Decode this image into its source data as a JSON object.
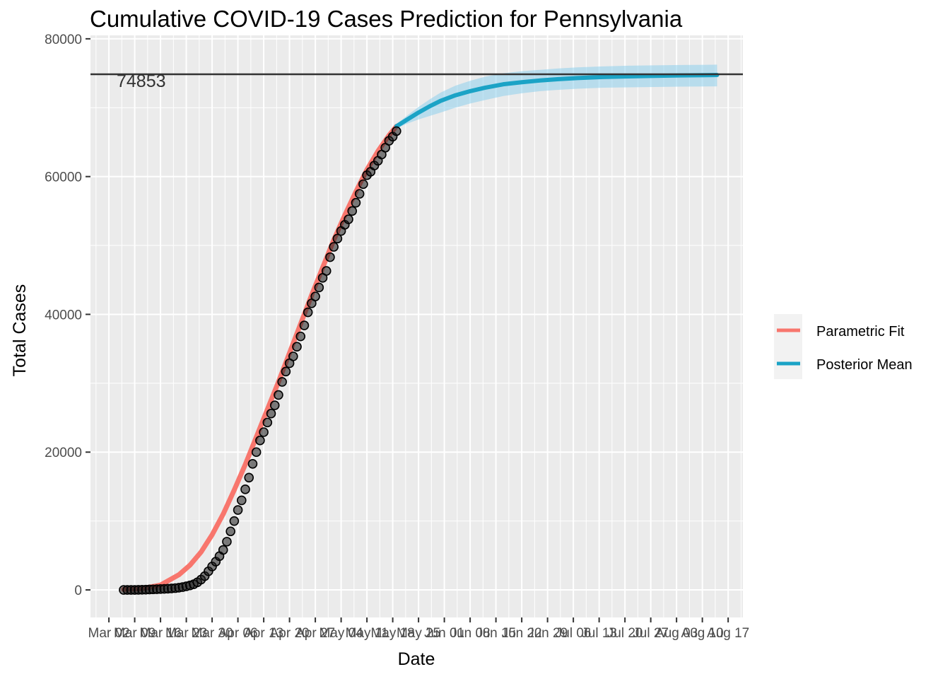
{
  "chart_data": {
    "type": "line",
    "title": "Cumulative COVID-19 Cases Prediction for Pennsylvania",
    "xlabel": "Date",
    "ylabel": "Total Cases",
    "x_range": [
      "2020-02-26",
      "2020-08-21"
    ],
    "ylim": [
      -4000,
      80500
    ],
    "y_ticks": [
      0,
      20000,
      40000,
      60000,
      80000
    ],
    "x_ticks": [
      {
        "date": "2020-03-02",
        "label": "Mar 02"
      },
      {
        "date": "2020-03-09",
        "label": "Mar 09"
      },
      {
        "date": "2020-03-16",
        "label": "Mar 16"
      },
      {
        "date": "2020-03-23",
        "label": "Mar 23"
      },
      {
        "date": "2020-03-30",
        "label": "Mar 30"
      },
      {
        "date": "2020-04-06",
        "label": "Apr 06"
      },
      {
        "date": "2020-04-13",
        "label": "Apr 13"
      },
      {
        "date": "2020-04-20",
        "label": "Apr 20"
      },
      {
        "date": "2020-04-27",
        "label": "Apr 27"
      },
      {
        "date": "2020-05-04",
        "label": "May 04"
      },
      {
        "date": "2020-05-11",
        "label": "May 11"
      },
      {
        "date": "2020-05-18",
        "label": "May 18"
      },
      {
        "date": "2020-05-25",
        "label": "May 25"
      },
      {
        "date": "2020-06-01",
        "label": "Jun 01"
      },
      {
        "date": "2020-06-08",
        "label": "Jun 08"
      },
      {
        "date": "2020-06-15",
        "label": "Jun 15"
      },
      {
        "date": "2020-06-22",
        "label": "Jun 22"
      },
      {
        "date": "2020-06-29",
        "label": "Jun 29"
      },
      {
        "date": "2020-07-06",
        "label": "Jul 06"
      },
      {
        "date": "2020-07-13",
        "label": "Jul 13"
      },
      {
        "date": "2020-07-20",
        "label": "Jul 20"
      },
      {
        "date": "2020-07-27",
        "label": "Jul 27"
      },
      {
        "date": "2020-08-03",
        "label": "Aug 03"
      },
      {
        "date": "2020-08-10",
        "label": "Aug 10"
      },
      {
        "date": "2020-08-17",
        "label": "Aug 17"
      }
    ],
    "hline": {
      "value": 74853,
      "label": "74853",
      "color": "#333333"
    },
    "observed": {
      "start_date": "2020-03-06",
      "values": [
        0,
        0,
        0,
        0,
        10,
        20,
        40,
        60,
        80,
        100,
        130,
        150,
        180,
        220,
        260,
        320,
        410,
        520,
        650,
        820,
        1100,
        1500,
        2000,
        2700,
        3400,
        4100,
        4900,
        5800,
        7000,
        8500,
        10000,
        11600,
        13000,
        14600,
        16300,
        18300,
        20000,
        21700,
        22900,
        24300,
        25600,
        26800,
        28300,
        30200,
        31700,
        32900,
        33900,
        35300,
        36800,
        38400,
        40300,
        41600,
        42600,
        43900,
        45300,
        46300,
        48300,
        49800,
        51000,
        52100,
        53000,
        53800,
        55000,
        56200,
        57500,
        58900,
        60200,
        60700,
        61600,
        62300,
        63200,
        64200,
        65200,
        65800,
        66600
      ]
    },
    "series": [
      {
        "name": "Parametric Fit",
        "color": "#F8766D",
        "x": [
          "2020-03-06",
          "2020-03-11",
          "2020-03-16",
          "2020-03-21",
          "2020-03-24",
          "2020-03-27",
          "2020-03-30",
          "2020-04-02",
          "2020-04-05",
          "2020-04-08",
          "2020-04-11",
          "2020-04-14",
          "2020-04-17",
          "2020-04-20",
          "2020-04-23",
          "2020-04-26",
          "2020-04-29",
          "2020-05-02",
          "2020-05-05",
          "2020-05-08",
          "2020-05-11",
          "2020-05-14",
          "2020-05-17",
          "2020-05-19"
        ],
        "values": [
          80,
          200,
          700,
          2200,
          3600,
          5500,
          8000,
          11000,
          14500,
          18200,
          22200,
          26200,
          30200,
          34400,
          38600,
          42800,
          46800,
          50800,
          54400,
          57800,
          61000,
          63700,
          66000,
          67300
        ]
      },
      {
        "name": "Posterior Mean",
        "color": "#00BFC4",
        "x": [
          "2020-05-19",
          "2020-05-22",
          "2020-05-25",
          "2020-05-28",
          "2020-05-31",
          "2020-06-04",
          "2020-06-08",
          "2020-06-12",
          "2020-06-17",
          "2020-06-22",
          "2020-06-27",
          "2020-07-02",
          "2020-07-07",
          "2020-07-14",
          "2020-07-21",
          "2020-07-28",
          "2020-08-04",
          "2020-08-11",
          "2020-08-14"
        ],
        "values": [
          67300,
          68300,
          69300,
          70200,
          71000,
          71800,
          72400,
          72900,
          73400,
          73700,
          73950,
          74150,
          74300,
          74450,
          74550,
          74620,
          74680,
          74720,
          74750
        ],
        "band_lower": [
          67000,
          67700,
          68300,
          68800,
          69300,
          70000,
          70600,
          71100,
          71700,
          72100,
          72400,
          72600,
          72750,
          72900,
          72950,
          73000,
          73050,
          73080,
          73100
        ],
        "band_upper": [
          67600,
          68900,
          70100,
          71200,
          72200,
          73200,
          73900,
          74500,
          75000,
          75300,
          75500,
          75700,
          75850,
          76000,
          76100,
          76150,
          76200,
          76220,
          76250
        ]
      }
    ],
    "legend": {
      "position": "right",
      "entries": [
        "Parametric Fit",
        "Posterior Mean"
      ]
    },
    "grid": true,
    "panel_background": "#EBEBEB",
    "grid_color": "#FFFFFF"
  }
}
